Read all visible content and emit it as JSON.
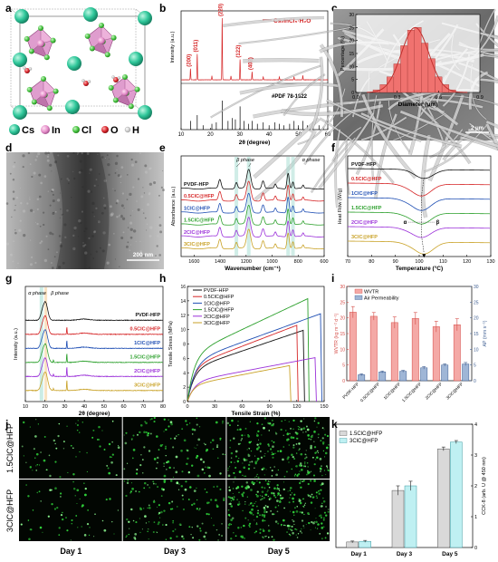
{
  "panel_labels": [
    "a",
    "b",
    "c",
    "d",
    "e",
    "f",
    "g",
    "h",
    "i",
    "j",
    "k"
  ],
  "panel_a": {
    "legend": [
      {
        "symbol": "Cs",
        "color": "#2fc79a"
      },
      {
        "symbol": "In",
        "color": "#e48cc8"
      },
      {
        "symbol": "Cl",
        "color": "#44c23e"
      },
      {
        "symbol": "O",
        "color": "#d8232a"
      },
      {
        "symbol": "H",
        "color": "#dddddd"
      }
    ]
  },
  "chart_data": [
    {
      "id": "b",
      "type": "line",
      "xlabel": "2θ (degree)",
      "ylabel": "Intensity (a.u.)",
      "xlim": [
        10,
        60
      ],
      "xticks": [
        "10",
        "20",
        "30",
        "40",
        "50",
        "60"
      ],
      "legend": "Cs₂InCl₅·H₂O",
      "reference_label": "#PDF 78-1822",
      "peaks": [
        {
          "x": 13.2,
          "h": 0.18,
          "label": "(200)"
        },
        {
          "x": 15.5,
          "h": 0.42,
          "label": "(011)"
        },
        {
          "x": 24.0,
          "h": 1.0,
          "label": "(220)"
        },
        {
          "x": 30.1,
          "h": 0.33,
          "label": "(122)"
        },
        {
          "x": 34.2,
          "h": 0.13,
          "label": "(402)"
        },
        {
          "x": 20.5,
          "h": 0.06,
          "label": ""
        },
        {
          "x": 27.0,
          "h": 0.06,
          "label": ""
        },
        {
          "x": 38.0,
          "h": 0.05,
          "label": ""
        },
        {
          "x": 43.5,
          "h": 0.05,
          "label": ""
        },
        {
          "x": 48.5,
          "h": 0.05,
          "label": ""
        },
        {
          "x": 51.5,
          "h": 0.07,
          "label": ""
        }
      ],
      "ref_sticks": [
        {
          "x": 13.2,
          "h": 0.3
        },
        {
          "x": 15.5,
          "h": 0.5
        },
        {
          "x": 17.5,
          "h": 0.15
        },
        {
          "x": 20.5,
          "h": 0.2
        },
        {
          "x": 22.0,
          "h": 0.25
        },
        {
          "x": 24.0,
          "h": 1.0
        },
        {
          "x": 26.0,
          "h": 0.3
        },
        {
          "x": 27.5,
          "h": 0.4
        },
        {
          "x": 28.5,
          "h": 0.35
        },
        {
          "x": 30.1,
          "h": 0.8
        },
        {
          "x": 31.5,
          "h": 0.3
        },
        {
          "x": 33.0,
          "h": 0.2
        },
        {
          "x": 34.2,
          "h": 0.3
        },
        {
          "x": 36.0,
          "h": 0.2
        },
        {
          "x": 38.0,
          "h": 0.25
        },
        {
          "x": 40.0,
          "h": 0.15
        },
        {
          "x": 42.0,
          "h": 0.25
        },
        {
          "x": 43.5,
          "h": 0.2
        },
        {
          "x": 45.0,
          "h": 0.15
        },
        {
          "x": 47.0,
          "h": 0.2
        },
        {
          "x": 48.5,
          "h": 0.3
        },
        {
          "x": 50.0,
          "h": 0.15
        },
        {
          "x": 51.5,
          "h": 0.3
        },
        {
          "x": 53.0,
          "h": 0.15
        },
        {
          "x": 55.0,
          "h": 0.2
        },
        {
          "x": 57.0,
          "h": 0.15
        },
        {
          "x": 58.5,
          "h": 0.1
        }
      ]
    },
    {
      "id": "c",
      "type": "bar",
      "xlabel": "Diameter (μm)",
      "ylabel": "Percentage (%)",
      "xlim": [
        0,
        0.9
      ],
      "ylim": [
        0,
        30
      ],
      "xticks": [
        "0.0",
        "0.3",
        "0.6",
        "0.9"
      ],
      "yticks": [
        "0",
        "5",
        "10",
        "15",
        "20",
        "25",
        "30"
      ],
      "bins": [
        0.15,
        0.2,
        0.25,
        0.3,
        0.35,
        0.4,
        0.45,
        0.5,
        0.55,
        0.6,
        0.65,
        0.7
      ],
      "values": [
        1,
        3,
        6,
        11,
        18,
        24,
        25,
        19,
        13,
        6,
        3,
        1
      ],
      "scale_bar": "2 μm"
    },
    {
      "id": "e",
      "type": "line",
      "xlabel": "Wavenumber (cm⁻¹)",
      "ylabel": "Absorbance (a.u.)",
      "xlim": [
        1700,
        600
      ],
      "xticks": [
        "1600",
        "1400",
        "1200",
        "1000",
        "800",
        "600"
      ],
      "annotations": [
        "β phase",
        "α phase"
      ],
      "series": [
        {
          "name": "PVDF-HFP",
          "color": "#111111"
        },
        {
          "name": "0.5ClC@HFP",
          "color": "#d62728"
        },
        {
          "name": "1ClC@HFP",
          "color": "#1f4fb4"
        },
        {
          "name": "1.5ClC@HFP",
          "color": "#2ca02c"
        },
        {
          "name": "2ClC@HFP",
          "color": "#9b30d9"
        },
        {
          "name": "3ClC@HFP",
          "color": "#c9a227"
        }
      ],
      "peaks": [
        {
          "x": 1402,
          "h": 0.45,
          "w": 14
        },
        {
          "x": 1275,
          "h": 0.3,
          "w": 12
        },
        {
          "x": 1180,
          "h": 0.95,
          "w": 22
        },
        {
          "x": 1070,
          "h": 0.4,
          "w": 14
        },
        {
          "x": 975,
          "h": 0.2,
          "w": 10
        },
        {
          "x": 877,
          "h": 0.8,
          "w": 12
        },
        {
          "x": 840,
          "h": 0.35,
          "w": 10
        },
        {
          "x": 762,
          "h": 0.15,
          "w": 8
        }
      ]
    },
    {
      "id": "f",
      "type": "line",
      "xlabel": "Temperature (°C)",
      "ylabel": "Heat Flow (W/g)",
      "xlim": [
        70,
        130
      ],
      "xticks": [
        "70",
        "80",
        "90",
        "100",
        "110",
        "120",
        "130"
      ],
      "phase_labels": [
        "α",
        "β"
      ],
      "series": [
        {
          "name": "PVDF-HFP",
          "color": "#111111",
          "peak": 102,
          "depth": 0.45
        },
        {
          "name": "0.5ClC@HFP",
          "color": "#d62728",
          "peak": 101,
          "depth": 0.6
        },
        {
          "name": "1ClC@HFP",
          "color": "#1f4fb4",
          "peak": 101,
          "depth": 0.6
        },
        {
          "name": "1.5ClC@HFP",
          "color": "#2ca02c",
          "peak": 101,
          "depth": 0.55
        },
        {
          "name": "2ClC@HFP",
          "color": "#9b30d9",
          "peak": 101,
          "depth": 0.5
        },
        {
          "name": "3ClC@HFP",
          "color": "#c9a227",
          "peak": 102,
          "depth": 0.6
        }
      ]
    },
    {
      "id": "g",
      "type": "line",
      "xlabel": "2θ (degree)",
      "ylabel": "Intensity (a.u.)",
      "xlim": [
        10,
        80
      ],
      "xticks": [
        "10",
        "20",
        "30",
        "40",
        "50",
        "60",
        "70",
        "80"
      ],
      "annotations": [
        "α phase",
        "β phase"
      ],
      "series": [
        {
          "name": "PVDF-HFP",
          "color": "#111111"
        },
        {
          "name": "0.5ClC@HFP",
          "color": "#d62728"
        },
        {
          "name": "1ClC@HFP",
          "color": "#1f4fb4"
        },
        {
          "name": "1.5ClC@HFP",
          "color": "#2ca02c"
        },
        {
          "name": "2ClC@HFP",
          "color": "#9b30d9"
        },
        {
          "name": "3ClC@HFP",
          "color": "#c9a227"
        }
      ]
    },
    {
      "id": "h",
      "type": "line",
      "xlabel": "Tensile Strain (%)",
      "ylabel": "Tensile Stress (MPa)",
      "xlim": [
        0,
        150
      ],
      "ylim": [
        0,
        16
      ],
      "xticks": [
        "0",
        "30",
        "60",
        "90",
        "120",
        "150"
      ],
      "yticks": [
        "0",
        "2",
        "4",
        "6",
        "8",
        "10",
        "12",
        "14",
        "16"
      ],
      "series": [
        {
          "name": "PVDF-HFP",
          "color": "#111111",
          "strain": 127,
          "stress": 9.9
        },
        {
          "name": "0.5ClC@HFP",
          "color": "#d62728",
          "strain": 120,
          "stress": 10.6
        },
        {
          "name": "1ClC@HFP",
          "color": "#1f4fb4",
          "strain": 146,
          "stress": 12.2
        },
        {
          "name": "1.5ClC@HFP",
          "color": "#2ca02c",
          "strain": 132,
          "stress": 14.3
        },
        {
          "name": "2ClC@HFP",
          "color": "#9b30d9",
          "strain": 140,
          "stress": 6.1
        },
        {
          "name": "3ClC@HFP",
          "color": "#c9a227",
          "strain": 112,
          "stress": 5.0
        }
      ]
    },
    {
      "id": "i",
      "type": "bar",
      "ylabel": "WVTR (kg m⁻² d⁻¹)",
      "ylabel_right": "AP (mm s⁻¹)",
      "ylim": [
        0,
        30
      ],
      "ylim_right": [
        0,
        30
      ],
      "yticks": [
        "0",
        "5",
        "10",
        "15",
        "20",
        "25",
        "30"
      ],
      "yticks_right": [
        "0",
        "5",
        "10",
        "15",
        "20",
        "25",
        "30"
      ],
      "legend": [
        "WVTR",
        "Air Permeability"
      ],
      "categories": [
        "PVDF-HFP",
        "0.5ClC@HFP",
        "1ClC@HFP",
        "1.5ClC@HFP",
        "2ClC@HFP",
        "3ClC@HFP"
      ],
      "series": [
        {
          "name": "WVTR",
          "values": [
            21.8,
            20.5,
            18.5,
            19.8,
            17.2,
            17.8
          ],
          "errors": [
            1.8,
            1.2,
            1.8,
            1.9,
            1.7,
            1.9
          ]
        },
        {
          "name": "Air Permeability",
          "values": [
            1.9,
            2.8,
            3.0,
            4.1,
            5.0,
            5.3
          ],
          "errors": [
            0.3,
            0.3,
            0.3,
            0.4,
            0.4,
            0.5
          ]
        }
      ]
    },
    {
      "id": "k",
      "type": "bar",
      "ylabel": "CCK-8 (arb. U @ 450 nm)",
      "ylim": [
        0,
        4
      ],
      "yticks": [
        "0",
        "1",
        "2",
        "3",
        "4"
      ],
      "categories": [
        "Day 1",
        "Day 3",
        "Day 5"
      ],
      "series": [
        {
          "name": "1.5ClC@HFP",
          "values": [
            0.18,
            1.85,
            3.2
          ],
          "errors": [
            0.03,
            0.15,
            0.06
          ]
        },
        {
          "name": "3ClC@HFP",
          "values": [
            0.2,
            2.0,
            3.42
          ],
          "errors": [
            0.03,
            0.15,
            0.05
          ]
        }
      ]
    }
  ],
  "panel_d": {
    "scale_bar": "200 nm"
  },
  "panel_j": {
    "rows": [
      "1.5ClC@HFP",
      "3ClC@HFP"
    ],
    "columns": [
      "Day 1",
      "Day 3",
      "Day 5"
    ],
    "cell_density": [
      [
        70,
        120,
        260
      ],
      [
        60,
        140,
        300
      ]
    ]
  }
}
